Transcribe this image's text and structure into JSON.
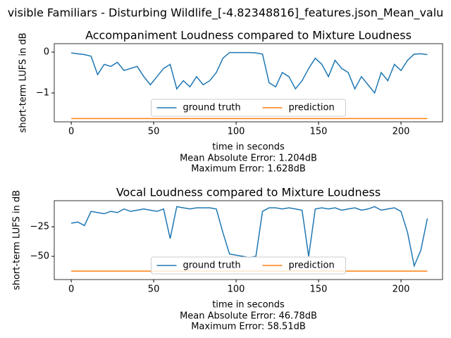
{
  "suptitle": "visible Familiars - Disturbing Wildlife_[-4.82348816]_features.json_Mean_valu",
  "chart_data": [
    {
      "type": "line",
      "title": "Accompaniment Loudness compared to Mixture Loudness",
      "xlabel": "time in seconds",
      "ylabel": "short-term LUFS in dB",
      "annotations": [
        "Mean Absolute Error: 1.204dB",
        "Maximum Error: 1.628dB"
      ],
      "xlim": [
        -10.3,
        225.2
      ],
      "ylim": [
        -1.707,
        0.207
      ],
      "xticks": [
        0,
        50,
        100,
        150,
        200
      ],
      "yticks": [
        {
          "value": -1,
          "label": "−1"
        },
        0
      ],
      "legend": "lower center",
      "x": [
        0,
        4,
        8,
        12,
        16,
        20,
        24,
        28,
        32,
        36,
        40,
        44,
        48,
        52,
        56,
        60,
        64,
        68,
        72,
        76,
        80,
        84,
        88,
        92,
        96,
        100,
        104,
        108,
        112,
        116,
        120,
        124,
        128,
        132,
        136,
        140,
        144,
        148,
        152,
        156,
        160,
        164,
        168,
        172,
        176,
        180,
        184,
        188,
        192,
        196,
        200,
        204,
        208,
        212,
        216
      ],
      "series": [
        {
          "name": "ground truth",
          "color": "#1f77b4",
          "values": [
            -0.02,
            -0.04,
            -0.06,
            -0.1,
            -0.55,
            -0.3,
            -0.35,
            -0.25,
            -0.45,
            -0.4,
            -0.35,
            -0.6,
            -0.8,
            -0.6,
            -0.4,
            -0.3,
            -0.9,
            -0.7,
            -0.85,
            -0.6,
            -0.8,
            -0.7,
            -0.5,
            -0.15,
            -0.01,
            -0.01,
            -0.01,
            -0.01,
            -0.02,
            -0.05,
            -0.75,
            -0.85,
            -0.5,
            -0.6,
            -0.9,
            -0.7,
            -0.4,
            -0.15,
            -0.3,
            -0.6,
            -0.2,
            -0.4,
            -0.5,
            -0.9,
            -0.6,
            -0.8,
            -1.0,
            -0.5,
            -0.7,
            -0.3,
            -0.45,
            -0.2,
            -0.05,
            -0.04,
            -0.06
          ]
        },
        {
          "name": "prediction",
          "color": "#ff7f0e",
          "x": [
            0,
            216
          ],
          "values": [
            -1.628,
            -1.628
          ]
        }
      ]
    },
    {
      "type": "line",
      "title": "Vocal Loudness compared to Mixture Loudness",
      "xlabel": "time in seconds",
      "ylabel": "short-term LUFS in dB",
      "annotations": [
        "Mean Absolute Error: 46.78dB",
        "Maximum Error: 58.51dB"
      ],
      "xlim": [
        -10.3,
        225.2
      ],
      "ylim": [
        -69.6,
        -2.98
      ],
      "xticks": [
        0,
        50,
        100,
        150,
        200
      ],
      "yticks": [
        {
          "value": -50,
          "label": "−50"
        },
        {
          "value": -25,
          "label": "−25"
        }
      ],
      "legend": "lower center",
      "x": [
        0,
        4,
        8,
        12,
        16,
        20,
        24,
        28,
        32,
        36,
        40,
        44,
        48,
        52,
        56,
        60,
        64,
        68,
        72,
        76,
        80,
        84,
        88,
        92,
        96,
        100,
        104,
        108,
        112,
        116,
        120,
        124,
        128,
        132,
        136,
        140,
        144,
        148,
        152,
        156,
        160,
        164,
        168,
        172,
        176,
        180,
        184,
        188,
        192,
        196,
        200,
        204,
        208,
        212,
        216
      ],
      "series": [
        {
          "name": "ground truth",
          "color": "#1f77b4",
          "values": [
            -22,
            -21,
            -24,
            -12,
            -13,
            -14,
            -12,
            -13,
            -10,
            -12,
            -11,
            -10,
            -11,
            -12,
            -10,
            -35,
            -8,
            -9,
            -10,
            -9,
            -9,
            -9,
            -10,
            -30,
            -48,
            -49,
            -50,
            -51,
            -50,
            -12,
            -9,
            -9,
            -10,
            -9,
            -10,
            -11,
            -50,
            -10,
            -9,
            -10,
            -9,
            -11,
            -10,
            -9,
            -11,
            -10,
            -8,
            -11,
            -10,
            -9,
            -12,
            -30,
            -58,
            -45,
            -18
          ]
        },
        {
          "name": "prediction",
          "color": "#ff7f0e",
          "x": [
            0,
            216
          ],
          "values": [
            -62.5,
            -62.5
          ]
        }
      ]
    }
  ]
}
